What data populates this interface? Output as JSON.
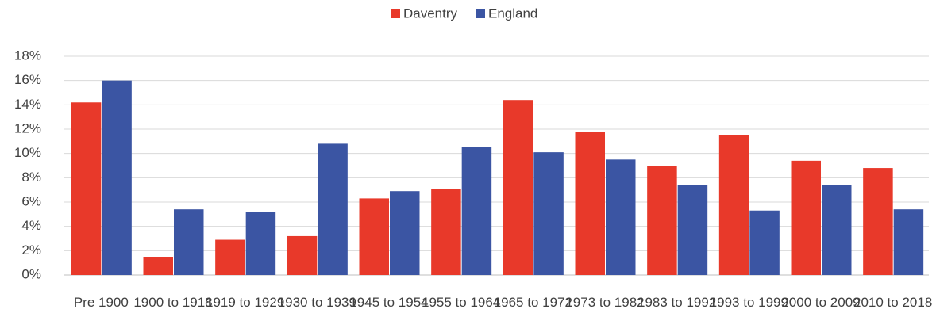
{
  "chart_data": {
    "type": "bar",
    "categories": [
      "Pre 1900",
      "1900 to 1918",
      "1919 to 1929",
      "1930 to 1939",
      "1945 to 1954",
      "1955 to 1964",
      "1965 to 1972",
      "1973 to 1982",
      "1983 to 1992",
      "1993 to 1999",
      "2000 to 2009",
      "2010 to 2018"
    ],
    "series": [
      {
        "name": "Daventry",
        "color": "#e8392a",
        "values": [
          14.2,
          1.5,
          2.9,
          3.2,
          6.3,
          7.1,
          14.4,
          11.8,
          9.0,
          11.5,
          9.4,
          8.8
        ]
      },
      {
        "name": "England",
        "color": "#3b55a3",
        "values": [
          16.0,
          5.4,
          5.2,
          10.8,
          6.9,
          10.5,
          10.1,
          9.5,
          7.4,
          5.3,
          7.4,
          5.4
        ]
      }
    ],
    "ylim": [
      0,
      18
    ],
    "yticks": [
      {
        "value": 0,
        "label": "0%"
      },
      {
        "value": 2,
        "label": "2%"
      },
      {
        "value": 4,
        "label": "4%"
      },
      {
        "value": 6,
        "label": "6%"
      },
      {
        "value": 8,
        "label": "8%"
      },
      {
        "value": 10,
        "label": "10%"
      },
      {
        "value": 12,
        "label": "12%"
      },
      {
        "value": 14,
        "label": "14%"
      },
      {
        "value": 16,
        "label": "16%"
      },
      {
        "value": 18,
        "label": "18%"
      }
    ],
    "grid": true,
    "legend": "top"
  }
}
